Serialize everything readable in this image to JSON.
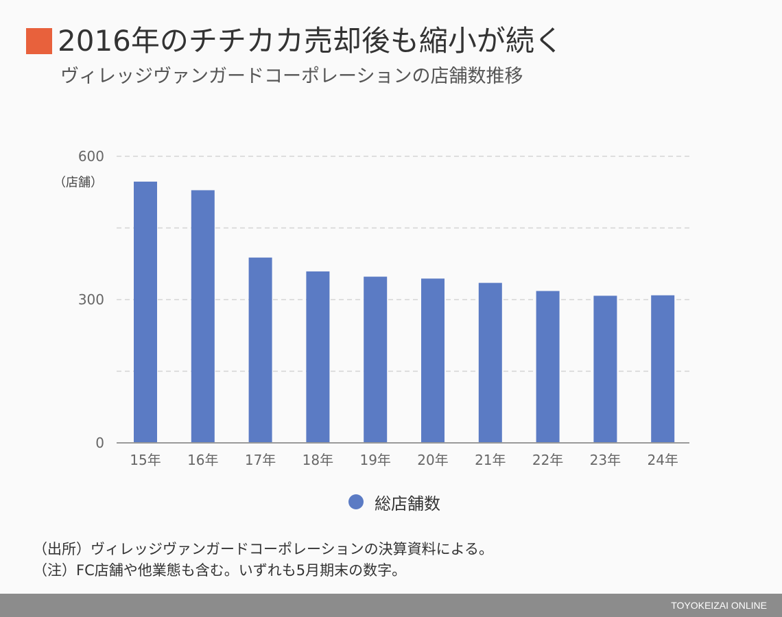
{
  "header": {
    "title": "2016年のチチカカ売却後も縮小が続く",
    "subtitle": "ヴィレッジヴァンガードコーポレーションの店舗数推移",
    "accent_color": "#e8613c"
  },
  "chart_data": {
    "type": "bar",
    "categories": [
      "15年",
      "16年",
      "17年",
      "18年",
      "19年",
      "20年",
      "21年",
      "22年",
      "23年",
      "24年"
    ],
    "series": [
      {
        "name": "総店舗数",
        "color": "#5b7bc4",
        "values": [
          547,
          529,
          388,
          359,
          348,
          344,
          335,
          318,
          308,
          309
        ]
      }
    ],
    "title": "2016年のチチカカ売却後も縮小が続く",
    "subtitle": "ヴィレッジヴァンガードコーポレーションの店舗数推移",
    "xlabel": "",
    "ylabel": "（店舗）",
    "ylim": [
      0,
      600
    ],
    "yticks": [
      0,
      300,
      600
    ],
    "ytick_labels": [
      "0",
      "300",
      "600"
    ],
    "gridlines": [
      150,
      300,
      450,
      600
    ],
    "grid": true,
    "legend_position": "bottom-center"
  },
  "notes": [
    "（出所）ヴィレッジヴァンガードコーポレーションの決算資料による。",
    "（注）FC店舗や他業態も含む。いずれも5月期末の数字。"
  ],
  "footer": {
    "brand": "TOYOKEIZAI ONLINE"
  }
}
